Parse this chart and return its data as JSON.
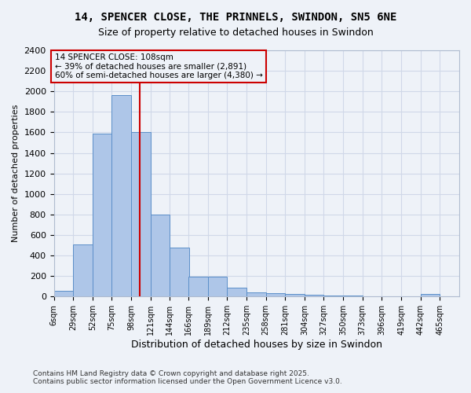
{
  "title_line1": "14, SPENCER CLOSE, THE PRINNELS, SWINDON, SN5 6NE",
  "title_line2": "Size of property relative to detached houses in Swindon",
  "xlabel": "Distribution of detached houses by size in Swindon",
  "ylabel": "Number of detached properties",
  "annotation_title": "14 SPENCER CLOSE: 108sqm",
  "annotation_line2": "← 39% of detached houses are smaller (2,891)",
  "annotation_line3": "60% of semi-detached houses are larger (4,380) →",
  "property_size": 108,
  "bar_color": "#aec6e8",
  "bar_edge_color": "#5b8fc9",
  "vline_color": "#cc0000",
  "grid_color": "#d0d8e8",
  "bg_color": "#eef2f8",
  "footnote1": "Contains HM Land Registry data © Crown copyright and database right 2025.",
  "footnote2": "Contains public sector information licensed under the Open Government Licence v3.0.",
  "bin_labels": [
    "6sqm",
    "29sqm",
    "52sqm",
    "75sqm",
    "98sqm",
    "121sqm",
    "144sqm",
    "166sqm",
    "189sqm",
    "212sqm",
    "235sqm",
    "258sqm",
    "281sqm",
    "304sqm",
    "327sqm",
    "350sqm",
    "373sqm",
    "396sqm",
    "419sqm",
    "442sqm",
    "465sqm"
  ],
  "bin_edges": [
    6,
    29,
    52,
    75,
    98,
    121,
    144,
    166,
    189,
    212,
    235,
    258,
    281,
    304,
    327,
    350,
    373,
    396,
    419,
    442,
    465
  ],
  "bar_heights": [
    60,
    510,
    1590,
    1960,
    1605,
    800,
    480,
    195,
    195,
    88,
    42,
    35,
    28,
    15,
    8,
    8,
    2,
    0,
    0,
    28
  ],
  "ylim": [
    0,
    2400
  ],
  "yticks": [
    0,
    200,
    400,
    600,
    800,
    1000,
    1200,
    1400,
    1600,
    1800,
    2000,
    2200,
    2400
  ]
}
